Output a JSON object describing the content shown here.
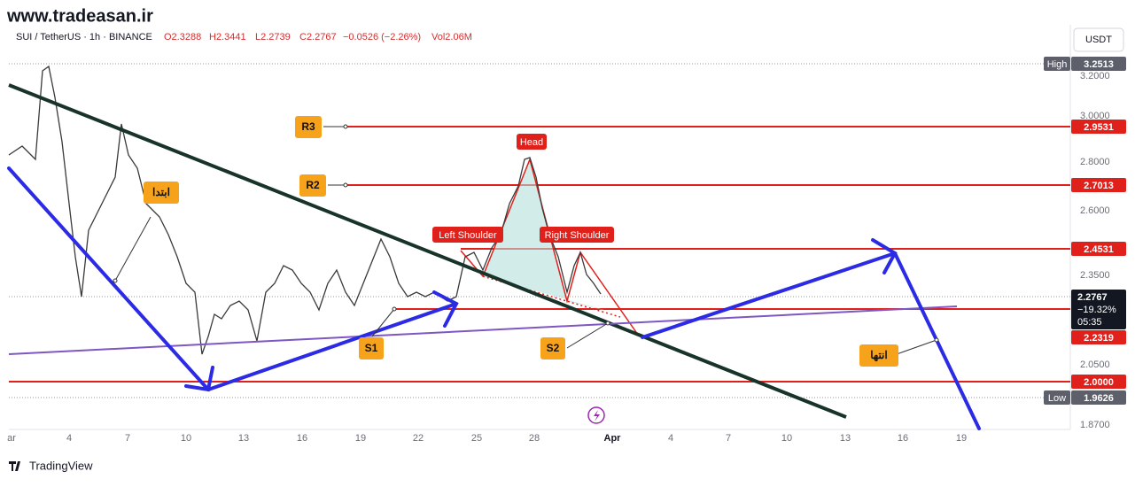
{
  "watermark": "www.tradeasan.ir",
  "header": {
    "symbol": "SUI / TetherUS · 1h · BINANCE",
    "open": "O2.3288",
    "high": "H2.3441",
    "low": "L2.2739",
    "close": "C2.2767",
    "change": "−0.0526 (−2.26%)",
    "volume": "Vol2.06M"
  },
  "price_axis": {
    "currency": "USDT",
    "ticks": [
      "3.2000",
      "3.0000",
      "2.8000",
      "2.6000",
      "2.3500",
      "2.0500",
      "1.8700"
    ],
    "high_label": "High",
    "high": "3.2513",
    "low_label": "Low",
    "low": "1.9626",
    "current_price": "2.2767",
    "current_change": "−19.32%",
    "countdown": "05:35",
    "levels": [
      "2.9531",
      "2.7013",
      "2.4531",
      "2.2319",
      "2.0000"
    ]
  },
  "time_axis": [
    "ar",
    "4",
    "7",
    "10",
    "13",
    "16",
    "19",
    "22",
    "25",
    "28",
    "Apr",
    "4",
    "7",
    "10",
    "13",
    "16",
    "19"
  ],
  "annotations": {
    "r3": "R3",
    "r2": "R2",
    "s1": "S1",
    "s2": "S2",
    "start": "ابتدا",
    "end": "انتها",
    "head": "Head",
    "left_shoulder": "Left Shoulder",
    "right_shoulder": "Right Shoulder"
  },
  "footer": "TradingView"
}
